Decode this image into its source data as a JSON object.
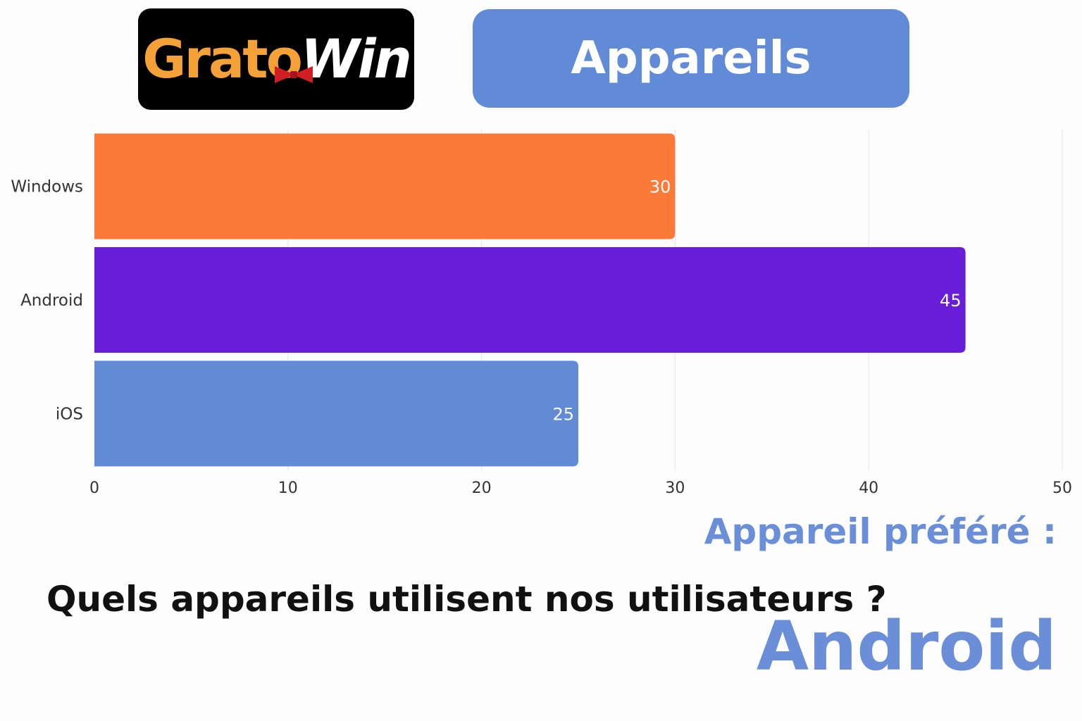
{
  "logo": {
    "part1": "Grato",
    "part2": "Win"
  },
  "header": {
    "title": "Appareils"
  },
  "chart_data": {
    "type": "bar",
    "orientation": "horizontal",
    "categories": [
      "Windows",
      "Android",
      "iOS"
    ],
    "values": [
      30,
      45,
      25
    ],
    "value_labels": [
      "30",
      "45",
      "25"
    ],
    "colors": [
      "#fc7a38",
      "#681ed8",
      "#628bd6"
    ],
    "xlim": [
      0,
      50
    ],
    "xticks": [
      "0",
      "10",
      "20",
      "30",
      "40",
      "50"
    ],
    "grid": "vertical",
    "legend": "none"
  },
  "summary": {
    "preferred_label": "Appareil préféré :",
    "question": "Quels appareils utilisent nos utilisateurs ?",
    "preferred_value": "Android"
  },
  "colors": {
    "accent_blue": "#618bd6",
    "logo_orange": "#f4a238"
  }
}
